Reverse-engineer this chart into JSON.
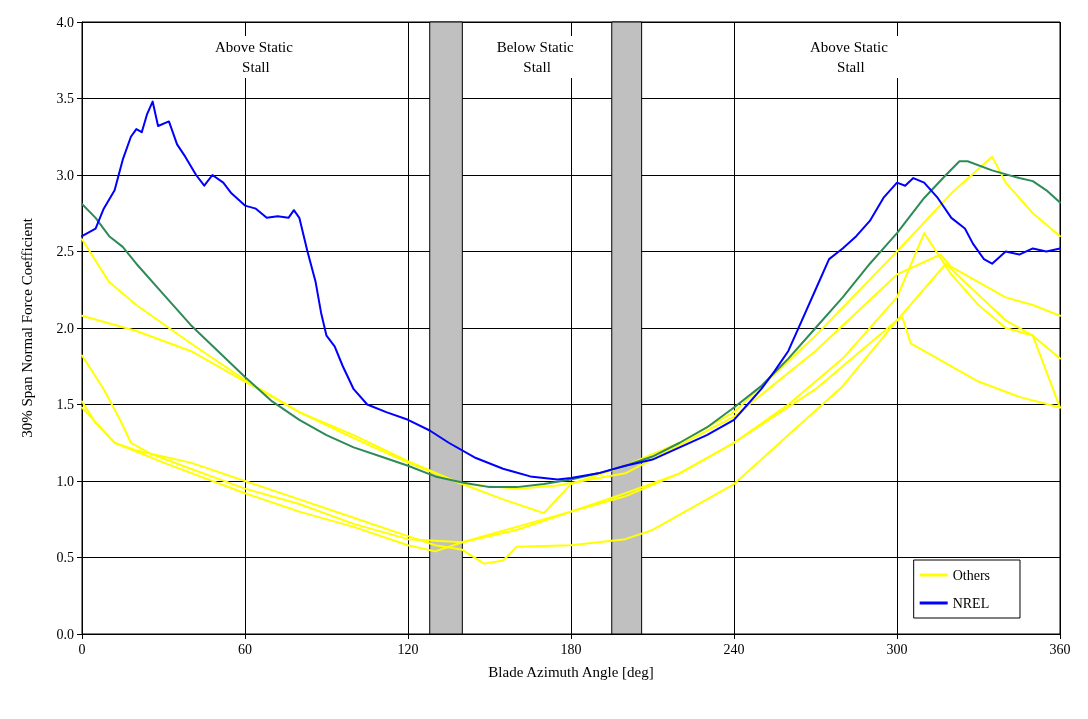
{
  "chart_data": {
    "type": "line",
    "xlabel": "Blade Azimuth Angle [deg]",
    "ylabel": "30% Span Normal Force Coefficient",
    "xlim": [
      0,
      360
    ],
    "xticks": [
      0,
      60,
      120,
      180,
      240,
      300,
      360
    ],
    "ylim": [
      0,
      4
    ],
    "yticks": [
      {
        "value": 0,
        "label": "0.0"
      },
      {
        "value": 0.5,
        "label": "0.5"
      },
      {
        "value": 1,
        "label": "1.0"
      },
      {
        "value": 1.5,
        "label": "1.5"
      },
      {
        "value": 2,
        "label": "2.0"
      },
      {
        "value": 2.5,
        "label": "2.5"
      },
      {
        "value": 3,
        "label": "3.0"
      },
      {
        "value": 3.5,
        "label": "3.5"
      },
      {
        "value": 4,
        "label": "4.0"
      }
    ],
    "grid": true,
    "legend": "bottom right",
    "marker": "none",
    "line_style": "solid",
    "bands": [
      {
        "axis": "x",
        "from": 128,
        "to": 140,
        "color": "#c0c0c0"
      },
      {
        "axis": "x",
        "from": 195,
        "to": 206,
        "color": "#c0c0c0"
      }
    ],
    "annotations": [
      "Above Static Stall",
      "Below Static Stall",
      "Above Static Stall"
    ],
    "series": [
      {
        "name": "Others",
        "color": "#ffff00",
        "x": [
          0,
          10,
          20,
          40,
          60,
          80,
          100,
          120,
          140,
          155,
          170,
          180,
          200,
          220,
          240,
          270,
          300,
          320,
          335,
          340,
          350,
          360
        ],
        "values": [
          2.58,
          2.3,
          2.15,
          1.9,
          1.66,
          1.45,
          1.3,
          1.13,
          0.98,
          0.88,
          0.79,
          0.98,
          1.1,
          1.25,
          1.45,
          1.95,
          2.5,
          2.88,
          3.12,
          2.95,
          2.75,
          2.6
        ]
      },
      {
        "color": "#ffff00",
        "x": [
          0,
          20,
          40,
          60,
          80,
          100,
          120,
          140,
          160,
          175,
          200,
          240,
          270,
          300,
          316,
          320,
          330,
          340,
          350,
          360
        ],
        "values": [
          2.08,
          1.98,
          1.85,
          1.65,
          1.45,
          1.28,
          1.12,
          0.98,
          0.95,
          0.97,
          1.05,
          1.42,
          1.85,
          2.35,
          2.48,
          2.4,
          2.3,
          2.2,
          2.15,
          2.08
        ]
      },
      {
        "color": "#ffff00",
        "x": [
          0,
          8,
          14,
          18,
          25,
          40,
          60,
          80,
          100,
          120,
          140,
          160,
          180,
          200,
          220,
          240,
          260,
          280,
          300,
          310,
          320,
          330,
          340,
          350,
          360
        ],
        "values": [
          1.82,
          1.6,
          1.4,
          1.25,
          1.18,
          1.08,
          0.95,
          0.85,
          0.72,
          0.62,
          0.6,
          0.68,
          0.8,
          0.9,
          1.05,
          1.25,
          1.5,
          1.8,
          2.2,
          2.62,
          2.35,
          2.15,
          2.0,
          1.95,
          1.8
        ]
      },
      {
        "color": "#ffff00",
        "x": [
          0,
          5,
          12,
          20,
          40,
          60,
          80,
          100,
          120,
          130,
          140,
          148,
          155,
          160,
          180,
          200,
          210,
          220,
          240,
          260,
          280,
          300,
          302,
          305,
          315,
          330,
          345,
          360
        ],
        "values": [
          1.52,
          1.38,
          1.25,
          1.2,
          1.12,
          1.0,
          0.88,
          0.76,
          0.64,
          0.58,
          0.55,
          0.46,
          0.48,
          0.57,
          0.58,
          0.62,
          0.68,
          0.78,
          0.98,
          1.3,
          1.62,
          2.05,
          2.07,
          1.9,
          1.8,
          1.65,
          1.55,
          1.48
        ]
      },
      {
        "color": "#ffff00",
        "x": [
          0,
          12,
          30,
          60,
          80,
          100,
          120,
          130,
          140,
          160,
          180,
          200,
          220,
          240,
          270,
          300,
          318,
          325,
          340,
          350,
          360
        ],
        "values": [
          1.48,
          1.25,
          1.12,
          0.92,
          0.8,
          0.7,
          0.58,
          0.54,
          0.6,
          0.7,
          0.8,
          0.92,
          1.05,
          1.25,
          1.6,
          2.05,
          2.42,
          2.3,
          2.05,
          1.95,
          1.48
        ]
      },
      {
        "color": "#2e8b57",
        "x": [
          0,
          5,
          10,
          15,
          20,
          30,
          40,
          50,
          60,
          70,
          80,
          90,
          100,
          110,
          120,
          130,
          140,
          150,
          160,
          170,
          180,
          190,
          200,
          210,
          220,
          230,
          240,
          250,
          260,
          270,
          280,
          290,
          300,
          310,
          318,
          323,
          326,
          335,
          345,
          350,
          355,
          360
        ],
        "values": [
          2.81,
          2.72,
          2.6,
          2.53,
          2.42,
          2.22,
          2.02,
          1.85,
          1.68,
          1.52,
          1.4,
          1.3,
          1.22,
          1.16,
          1.1,
          1.03,
          0.99,
          0.96,
          0.96,
          0.98,
          1.01,
          1.05,
          1.1,
          1.16,
          1.25,
          1.35,
          1.48,
          1.62,
          1.8,
          2.0,
          2.2,
          2.42,
          2.62,
          2.85,
          3.0,
          3.09,
          3.09,
          3.03,
          2.98,
          2.96,
          2.9,
          2.82
        ]
      },
      {
        "name": "NREL",
        "color": "#0000ff",
        "x": [
          0,
          5,
          8,
          12,
          15,
          18,
          20,
          22,
          24,
          26,
          28,
          32,
          35,
          38,
          42,
          45,
          48,
          52,
          55,
          60,
          64,
          68,
          72,
          76,
          78,
          80,
          83,
          86,
          88,
          90,
          93,
          96,
          100,
          105,
          112,
          120,
          128,
          135,
          145,
          155,
          165,
          175,
          180,
          190,
          200,
          210,
          220,
          230,
          240,
          245,
          250,
          255,
          260,
          265,
          270,
          275,
          280,
          285,
          290,
          295,
          300,
          303,
          306,
          310,
          315,
          320,
          325,
          328,
          332,
          335,
          340,
          345,
          350,
          355,
          360
        ],
        "values": [
          2.6,
          2.65,
          2.78,
          2.9,
          3.1,
          3.25,
          3.3,
          3.28,
          3.4,
          3.48,
          3.32,
          3.35,
          3.2,
          3.12,
          3.0,
          2.93,
          3.0,
          2.95,
          2.88,
          2.8,
          2.78,
          2.72,
          2.73,
          2.72,
          2.77,
          2.72,
          2.5,
          2.3,
          2.1,
          1.95,
          1.88,
          1.75,
          1.6,
          1.5,
          1.45,
          1.4,
          1.33,
          1.25,
          1.15,
          1.08,
          1.03,
          1.01,
          1.02,
          1.05,
          1.1,
          1.14,
          1.22,
          1.3,
          1.4,
          1.5,
          1.6,
          1.72,
          1.85,
          2.05,
          2.25,
          2.45,
          2.52,
          2.6,
          2.7,
          2.85,
          2.95,
          2.93,
          2.98,
          2.95,
          2.85,
          2.72,
          2.65,
          2.55,
          2.45,
          2.42,
          2.5,
          2.48,
          2.52,
          2.5,
          2.52
        ]
      }
    ]
  }
}
